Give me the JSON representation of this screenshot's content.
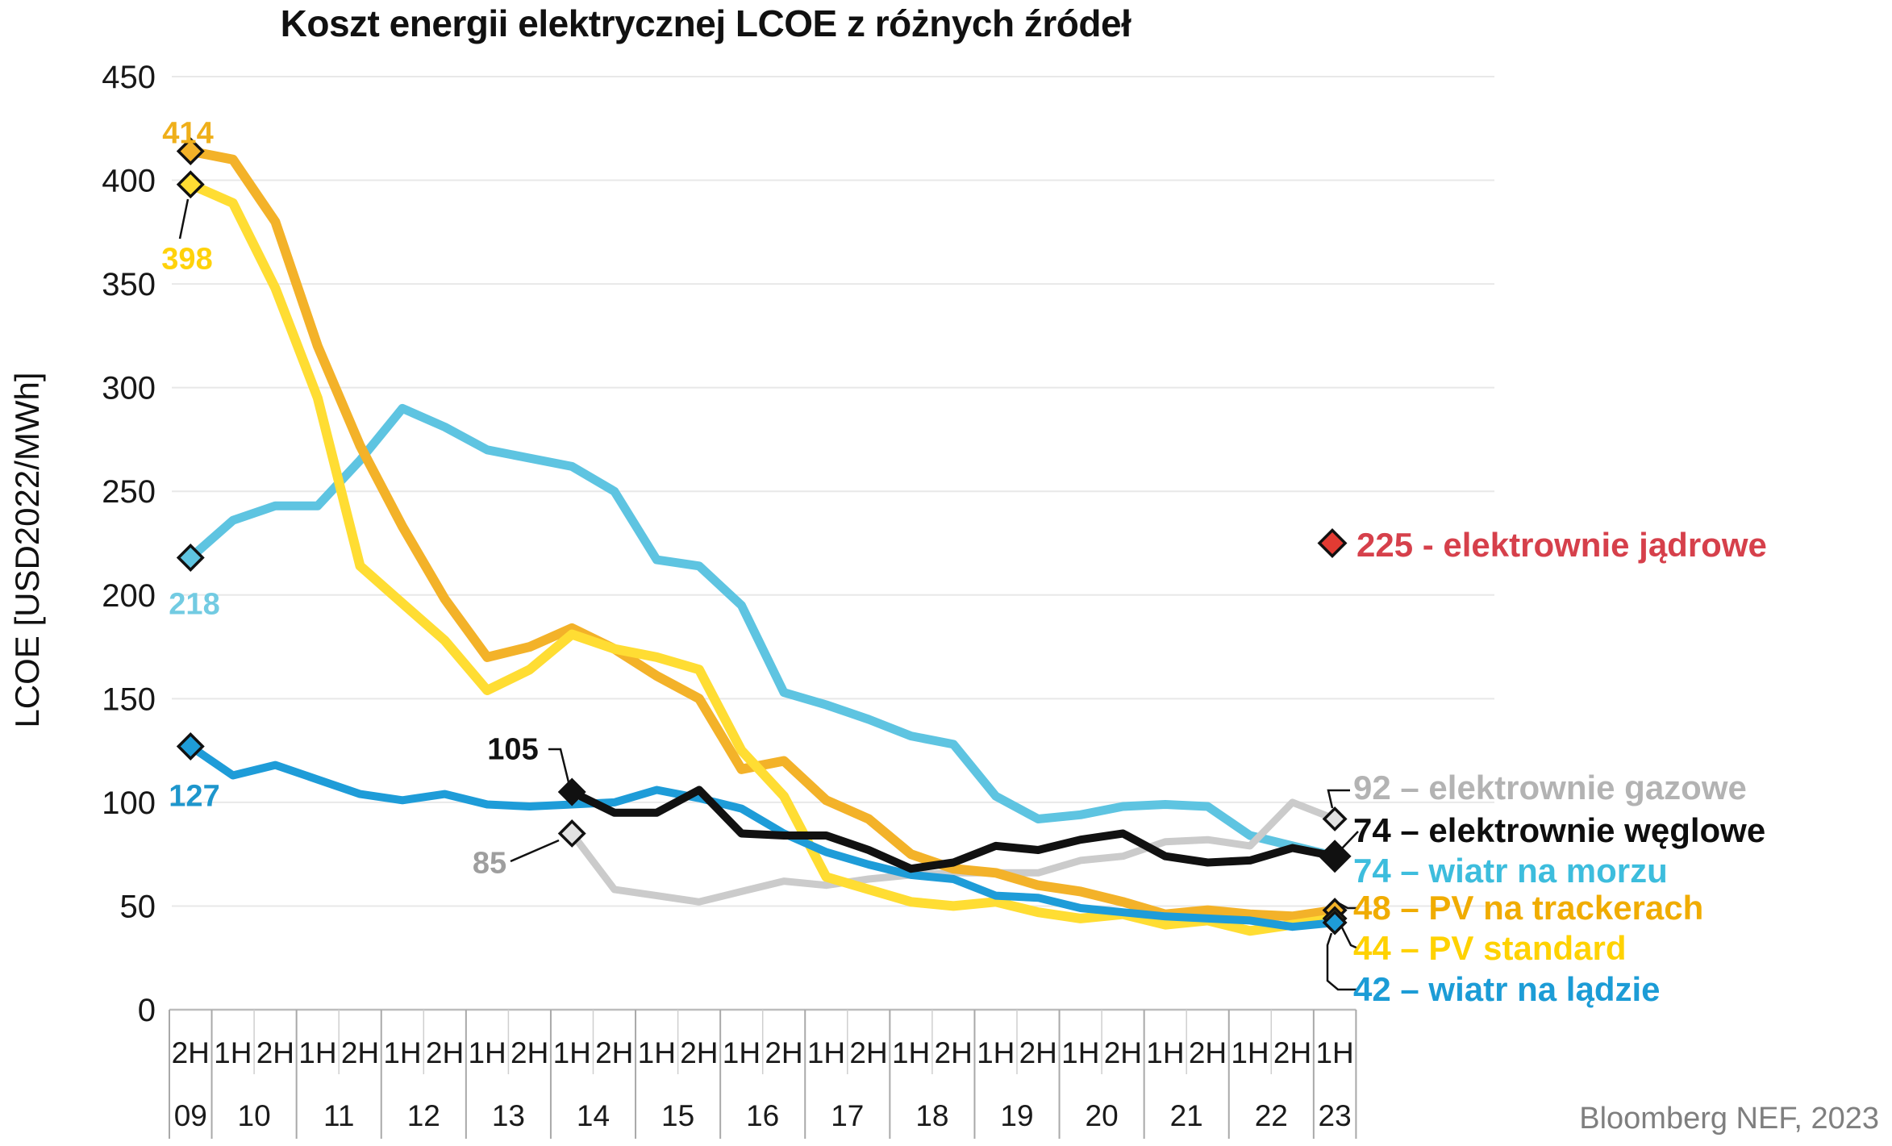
{
  "title": "Koszt energii elektrycznej LCOE z różnych źródeł",
  "y_axis_label": "LCOE [USD2022/MWh]",
  "source": "Bloomberg NEF, 2023",
  "chart_data": {
    "type": "line",
    "x_categories": [
      "2H09",
      "1H10",
      "2H10",
      "1H11",
      "2H11",
      "1H12",
      "2H12",
      "1H13",
      "2H13",
      "1H14",
      "2H14",
      "1H15",
      "2H15",
      "1H16",
      "2H16",
      "1H17",
      "2H17",
      "1H18",
      "2H18",
      "1H19",
      "2H19",
      "1H20",
      "2H20",
      "1H21",
      "2H21",
      "1H22",
      "2H22",
      "1H23"
    ],
    "x_axis": {
      "half_labels": [
        "2H",
        "1H",
        "2H",
        "1H",
        "2H",
        "1H",
        "2H",
        "1H",
        "2H",
        "1H",
        "2H",
        "1H",
        "2H",
        "1H",
        "2H",
        "1H",
        "2H",
        "1H",
        "2H",
        "1H",
        "2H",
        "1H",
        "2H",
        "1H",
        "2H",
        "1H",
        "2H",
        "1H"
      ],
      "years": [
        {
          "label": "09",
          "cells": 1
        },
        {
          "label": "10",
          "cells": 2
        },
        {
          "label": "11",
          "cells": 2
        },
        {
          "label": "12",
          "cells": 2
        },
        {
          "label": "13",
          "cells": 2
        },
        {
          "label": "14",
          "cells": 2
        },
        {
          "label": "15",
          "cells": 2
        },
        {
          "label": "16",
          "cells": 2
        },
        {
          "label": "17",
          "cells": 2
        },
        {
          "label": "18",
          "cells": 2
        },
        {
          "label": "19",
          "cells": 2
        },
        {
          "label": "20",
          "cells": 2
        },
        {
          "label": "21",
          "cells": 2
        },
        {
          "label": "22",
          "cells": 2
        },
        {
          "label": "23",
          "cells": 1
        }
      ]
    },
    "y_ticks": [
      450,
      400,
      350,
      300,
      250,
      200,
      150,
      100,
      50,
      0
    ],
    "ylim": [
      0,
      450
    ],
    "legend_position": "right-inline-labels",
    "grid": true,
    "series": [
      {
        "name": "wiatr na morzu",
        "color": "#5EC4E1",
        "width": 11,
        "marker_start": true,
        "marker_end": false,
        "values": [
          218,
          236,
          243,
          243,
          265,
          290,
          281,
          270,
          266,
          262,
          250,
          217,
          214,
          195,
          153,
          147,
          140,
          132,
          128,
          103,
          92,
          94,
          98,
          99,
          98,
          84,
          79,
          74
        ]
      },
      {
        "name": "elektrownie gazowe",
        "color": "#CBCBCB",
        "width": 9,
        "marker_start": true,
        "marker_end": true,
        "marker_fill": "#E2E2E2",
        "values": [
          null,
          null,
          null,
          null,
          null,
          null,
          null,
          null,
          null,
          85,
          58,
          55,
          52,
          57,
          62,
          60,
          63,
          65,
          66,
          66,
          66,
          72,
          74,
          81,
          82,
          79,
          100,
          92
        ]
      },
      {
        "name": "PV na trackerach",
        "color": "#F3B229",
        "width": 12,
        "marker_start": true,
        "marker_end": true,
        "values": [
          414,
          410,
          380,
          320,
          272,
          233,
          198,
          170,
          175,
          184,
          174,
          161,
          150,
          116,
          120,
          101,
          92,
          75,
          68,
          66,
          60,
          57,
          52,
          46,
          48,
          46,
          45,
          48
        ]
      },
      {
        "name": "PV standard",
        "color": "#FFDD33",
        "width": 12,
        "marker_start": true,
        "marker_end": true,
        "values": [
          398,
          389,
          348,
          295,
          214,
          196,
          178,
          154,
          164,
          181,
          174,
          170,
          164,
          125,
          103,
          64,
          58,
          52,
          50,
          52,
          47,
          44,
          46,
          41,
          43,
          38,
          41,
          44
        ]
      },
      {
        "name": "wiatr na lądzie",
        "color": "#1E9CD8",
        "width": 10,
        "marker_start": true,
        "marker_end": true,
        "values": [
          127,
          113,
          118,
          111,
          104,
          101,
          104,
          99,
          98,
          99,
          100,
          106,
          102,
          97,
          85,
          76,
          70,
          65,
          63,
          55,
          54,
          49,
          47,
          45,
          44,
          43,
          40,
          42
        ]
      },
      {
        "name": "elektrownie węglowe",
        "color": "#111111",
        "width": 10,
        "marker_start": true,
        "marker_end": true,
        "values": [
          null,
          null,
          null,
          null,
          null,
          null,
          null,
          null,
          null,
          105,
          95,
          95,
          106,
          85,
          84,
          84,
          77,
          68,
          71,
          79,
          77,
          82,
          85,
          74,
          71,
          72,
          78,
          74
        ]
      }
    ],
    "nuclear_point": {
      "name": "elektrownie jądrowe",
      "x": "1H23",
      "value": 225,
      "color": "#E23B33"
    }
  },
  "annotations": {
    "point_labels": [
      {
        "id": "label-414",
        "text": "414",
        "color": "#EFAF1A"
      },
      {
        "id": "label-398",
        "text": "398",
        "color": "#FFD20A"
      },
      {
        "id": "label-218",
        "text": "218",
        "color": "#72CBE2"
      },
      {
        "id": "label-127",
        "text": "127",
        "color": "#1E96CC"
      },
      {
        "id": "label-105",
        "text": "105",
        "color": "#121212"
      },
      {
        "id": "label-85",
        "text": "85",
        "color": "#9E9E9E"
      },
      {
        "id": "label-nuclear",
        "text": "225 - elektrownie jądrowe",
        "color": "#D6404B"
      },
      {
        "id": "label-gas",
        "text": "92 – elektrownie gazowe",
        "color": "#B3B3B3"
      },
      {
        "id": "label-coal",
        "text": "74 – elektrownie węglowe",
        "color": "#0E0E0E"
      },
      {
        "id": "label-offshore",
        "text": "74 – wiatr na morzu",
        "color": "#3DBDDD"
      },
      {
        "id": "label-trackers",
        "text": "48 – PV na trackerach",
        "color": "#F0AC00"
      },
      {
        "id": "label-standard",
        "text": "44 – PV standard",
        "color": "#FFD200"
      },
      {
        "id": "label-onshore",
        "text": "42 – wiatr na lądzie",
        "color": "#1C9CD6"
      }
    ]
  }
}
